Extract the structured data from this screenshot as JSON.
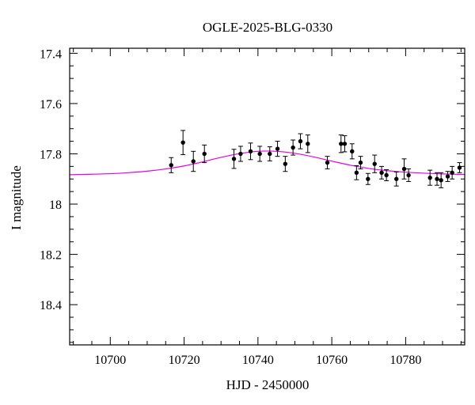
{
  "chart_data": {
    "type": "scatter",
    "title": "OGLE-2025-BLG-0330",
    "xlabel": "HJD - 2450000",
    "ylabel": "I magnitude",
    "xlim": [
      10689,
      10796
    ],
    "ylim": [
      18.56,
      17.38
    ],
    "y_inverted": true,
    "x_major_ticks": [
      10700,
      10720,
      10740,
      10760,
      10780
    ],
    "y_major_ticks": [
      17.4,
      17.6,
      17.8,
      18,
      18.2,
      18.4
    ],
    "x_tick_labels": [
      "10700",
      "10720",
      "10740",
      "10760",
      "10780"
    ],
    "y_tick_labels": [
      "17.4",
      "17.6",
      "17.8",
      "18",
      "18.2",
      "18.4"
    ],
    "grid": false,
    "colors": {
      "data": "#000000",
      "model": "#e600e6"
    },
    "series": [
      {
        "kind": "points_with_errorbars",
        "x": [
          10716.5,
          10719.7,
          10722.5,
          10725.5,
          10733.5,
          10735.3,
          10738.0,
          10740.5,
          10743.2,
          10745.3,
          10747.4,
          10749.5,
          10751.5,
          10753.5,
          10758.8,
          10762.5,
          10763.5,
          10765.5,
          10766.7,
          10767.8,
          10769.8,
          10771.6,
          10773.5,
          10774.8,
          10777.5,
          10779.6,
          10780.8,
          10786.6,
          10788.5,
          10789.6,
          10791.4,
          10792.6,
          10794.6
        ],
        "y": [
          17.845,
          17.755,
          17.83,
          17.8,
          17.82,
          17.8,
          17.79,
          17.8,
          17.8,
          17.78,
          17.84,
          17.775,
          17.75,
          17.76,
          17.835,
          17.76,
          17.76,
          17.79,
          17.875,
          17.835,
          17.9,
          17.84,
          17.875,
          17.885,
          17.9,
          17.86,
          17.885,
          17.895,
          17.9,
          17.905,
          17.89,
          17.875,
          17.855
        ],
        "err": [
          0.03,
          0.048,
          0.04,
          0.035,
          0.038,
          0.03,
          0.033,
          0.03,
          0.028,
          0.03,
          0.03,
          0.03,
          0.03,
          0.035,
          0.025,
          0.035,
          0.032,
          0.03,
          0.028,
          0.025,
          0.022,
          0.035,
          0.025,
          0.022,
          0.028,
          0.04,
          0.025,
          0.03,
          0.025,
          0.03,
          0.02,
          0.025,
          0.02
        ]
      },
      {
        "kind": "model_curve",
        "x": [
          10689,
          10695,
          10700,
          10705,
          10710,
          10715,
          10720,
          10725,
          10730,
          10735,
          10740,
          10745,
          10750,
          10755,
          10760,
          10765,
          10770,
          10775,
          10780,
          10785,
          10790,
          10796
        ],
        "y": [
          17.883,
          17.881,
          17.879,
          17.875,
          17.869,
          17.86,
          17.848,
          17.832,
          17.814,
          17.799,
          17.79,
          17.79,
          17.798,
          17.812,
          17.829,
          17.845,
          17.858,
          17.867,
          17.873,
          17.877,
          17.88,
          17.882
        ]
      }
    ]
  }
}
